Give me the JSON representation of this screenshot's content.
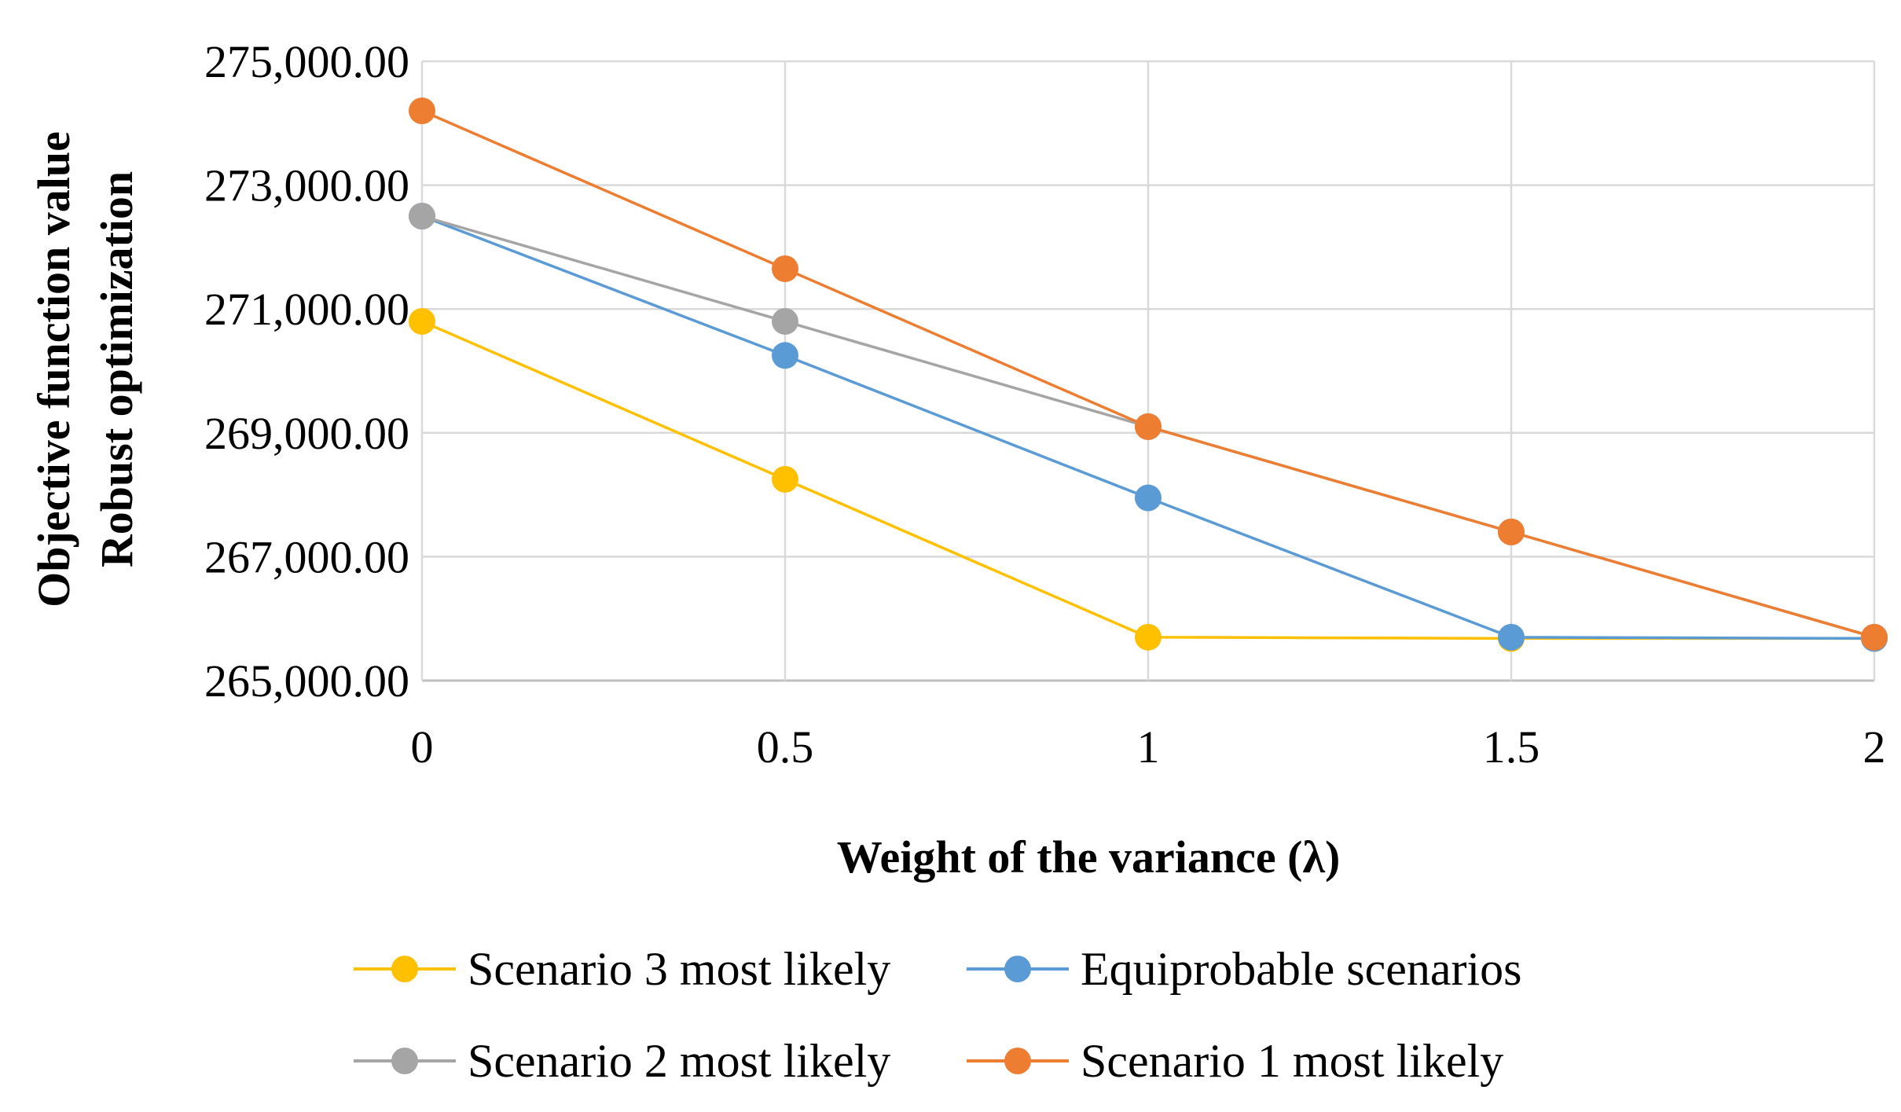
{
  "chart_data": {
    "type": "line",
    "title": "",
    "xlabel": "Weight of the variance (λ)",
    "ylabel_lines": [
      "Objective function value",
      "Robust optimization"
    ],
    "x": [
      "0",
      "0.5",
      "1",
      "1.5",
      "2"
    ],
    "x_values": [
      0,
      0.5,
      1,
      1.5,
      2
    ],
    "ylim": [
      265000,
      275000
    ],
    "y_ticks": [
      265000,
      267000,
      269000,
      271000,
      273000,
      275000
    ],
    "y_tick_labels": [
      "265,000.00",
      "267,000.00",
      "269,000.00",
      "271,000.00",
      "273,000.00",
      "275,000.00"
    ],
    "grid": true,
    "legend_position": "bottom",
    "series": [
      {
        "name": "Scenario 3 most likely",
        "color": "#FFC000",
        "values": [
          270800,
          268250,
          265700,
          265680,
          265680
        ]
      },
      {
        "name": "Equiprobable scenarios",
        "color": "#5B9BD5",
        "values": [
          272500,
          270250,
          267950,
          265700,
          265680
        ]
      },
      {
        "name": "Scenario 2 most likely",
        "color": "#A5A5A5",
        "values": [
          272500,
          270800,
          269100,
          267400,
          265700
        ]
      },
      {
        "name": "Scenario 1 most likely",
        "color": "#ED7D31",
        "values": [
          274200,
          271650,
          269100,
          267400,
          265700
        ]
      }
    ]
  }
}
